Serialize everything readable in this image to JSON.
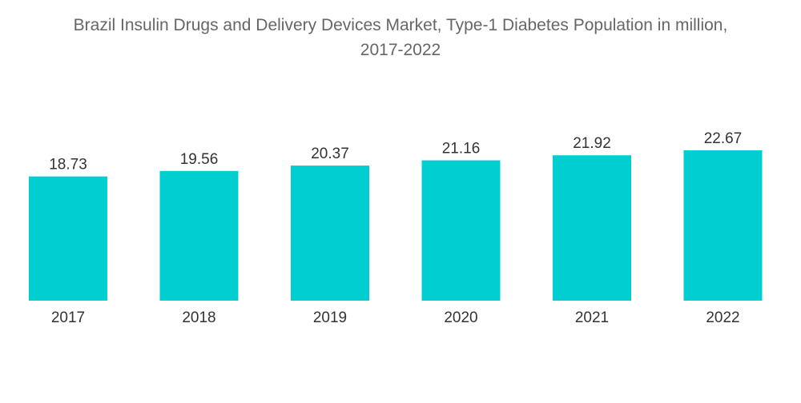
{
  "chart_data": {
    "type": "bar",
    "title": "Brazil Insulin Drugs and Delivery Devices Market, Type-1 Diabetes Population in million,",
    "subtitle": "2017-2022",
    "xlabel": "",
    "ylabel": "",
    "categories": [
      "2017",
      "2018",
      "2019",
      "2020",
      "2021",
      "2022"
    ],
    "values": [
      18.73,
      19.56,
      20.37,
      21.16,
      21.92,
      22.67
    ],
    "value_labels": [
      "18.73",
      "19.56",
      "20.37",
      "21.16",
      "21.92",
      "22.67"
    ],
    "ylim": [
      0,
      24
    ],
    "grid": false,
    "legend": "none",
    "bar_color": "#00CED1"
  }
}
